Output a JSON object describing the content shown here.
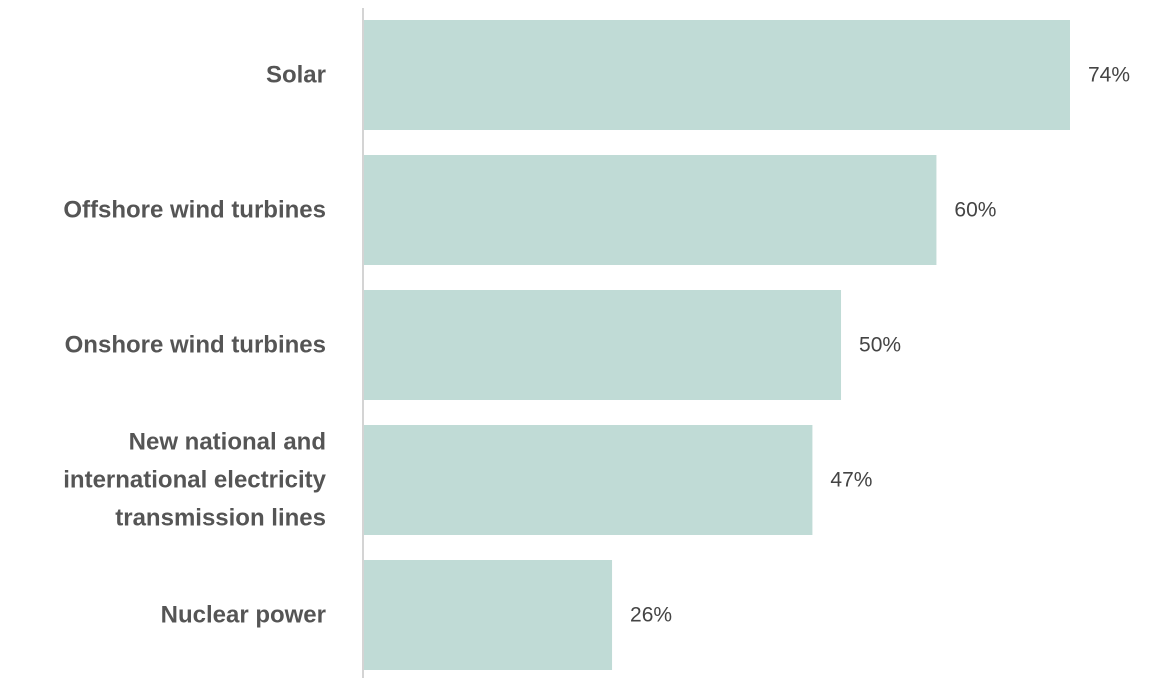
{
  "chart_data": {
    "type": "bar",
    "orientation": "horizontal",
    "categories": [
      [
        "Solar"
      ],
      [
        "Offshore wind turbines"
      ],
      [
        "Onshore wind turbines"
      ],
      [
        "New national and",
        "international electricity",
        "transmission lines"
      ],
      [
        "Nuclear power"
      ]
    ],
    "values": [
      74,
      60,
      50,
      47,
      26
    ],
    "value_labels": [
      "74%",
      "60%",
      "50%",
      "47%",
      "26%"
    ],
    "title": "",
    "xlabel": "",
    "ylabel": "",
    "xlim": [
      0,
      100
    ],
    "grid": false,
    "legend": "none",
    "bar_color": "#c0dbd6",
    "axis_color": "#d4d4d4"
  }
}
